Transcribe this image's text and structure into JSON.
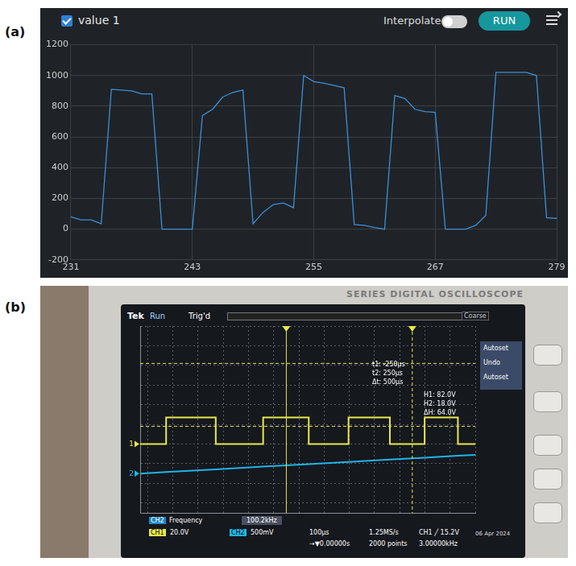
{
  "panel_labels": [
    "(a)",
    "(b)"
  ],
  "plotter_ui": {
    "interpolate": "Interpolate",
    "button": "RUN"
  },
  "scope_ui": {
    "brand": "SERIES DIGITAL OSCILLOSCOPE",
    "status": [
      "Tek",
      "Run",
      "Trig'd"
    ],
    "coarse": "Coarse",
    "menu": [
      "Autoset",
      "Undo",
      "Autoset"
    ],
    "time_readouts": [
      "t1: -250µs",
      "t2: 250µs",
      "Δt: 500µs"
    ],
    "amplitude_readouts": [
      "H1: 82.0V",
      "H2: 18.0V",
      "ΔH: 64.0V"
    ],
    "measurement": {
      "channel": "CH2",
      "name": "Frequency",
      "value": "100.2kHz"
    },
    "timebase": "100µs",
    "sample_rate": "1.25MS/s",
    "trigger": "CH1 ╱ 15.2V",
    "date": "06 Apr 2024",
    "position": "→▼0.00000s",
    "record_length": "2000 points",
    "trigger_frequency": "3.00000kHz"
  },
  "chart_data": [
    {
      "type": "line",
      "x": [
        231,
        232,
        233,
        234,
        235,
        236,
        237,
        238,
        239,
        240,
        241,
        242,
        243,
        244,
        245,
        246,
        247,
        248,
        249,
        250,
        251,
        252,
        253,
        254,
        255,
        256,
        257,
        258,
        259,
        260,
        261,
        262,
        263,
        264,
        265,
        266,
        267,
        268,
        269,
        270,
        271,
        272,
        273,
        274,
        275,
        276,
        277,
        278,
        279
      ],
      "series": [
        {
          "name": "value 1",
          "color": "#3d8fd6",
          "line_style": "solid",
          "values": [
            80,
            60,
            60,
            35,
            910,
            905,
            900,
            880,
            880,
            0,
            0,
            0,
            0,
            740,
            780,
            860,
            890,
            905,
            35,
            110,
            160,
            170,
            140,
            1000,
            960,
            950,
            935,
            920,
            30,
            25,
            10,
            0,
            870,
            850,
            780,
            765,
            760,
            0,
            0,
            0,
            25,
            90,
            1020,
            1020,
            1020,
            1020,
            1000,
            75,
            70
          ]
        }
      ],
      "xlim": [
        231,
        279
      ],
      "xticks": [
        231,
        243,
        255,
        267,
        279
      ],
      "ylim": [
        -200,
        1200
      ],
      "yticks": [
        -200,
        0,
        200,
        400,
        600,
        800,
        1000,
        1200
      ],
      "grid": true
    },
    {
      "type": "line",
      "x": [
        -830,
        -727,
        -530,
        -342,
        -161,
        -3,
        161,
        299,
        431,
        500
      ],
      "series": [
        {
          "name": "CH1",
          "color": "#e8e84c",
          "scale_label": "20.0V",
          "ground_label": "1",
          "ground_level": 0,
          "line_style": "step",
          "values": [
            0,
            27,
            0,
            27,
            0,
            27,
            0,
            27,
            0,
            0
          ]
        },
        {
          "name": "CH2",
          "color": "#22b4e6",
          "scale_label": "500mV",
          "ground_label": "2",
          "ground_level": -30,
          "line_style": "solid",
          "values": [
            -30,
            -28.5,
            -25.7,
            -23,
            -20.4,
            -18.2,
            -15.8,
            -13.8,
            -11.9,
            -11
          ]
        }
      ],
      "xlim": [
        -830,
        500
      ],
      "xticks": [
        -800,
        -700,
        -600,
        -500,
        -400,
        -300,
        -200,
        -100,
        0,
        100,
        200,
        300,
        400,
        500
      ],
      "ylim": [
        -70,
        120
      ],
      "yticks": [
        -60,
        -40,
        -20,
        0,
        20,
        40,
        60,
        80,
        100,
        120
      ],
      "vertical_cursors": [
        -250,
        250
      ],
      "horizontal_cursors": [
        82,
        18
      ],
      "grid": true,
      "tick_labels": false
    }
  ]
}
